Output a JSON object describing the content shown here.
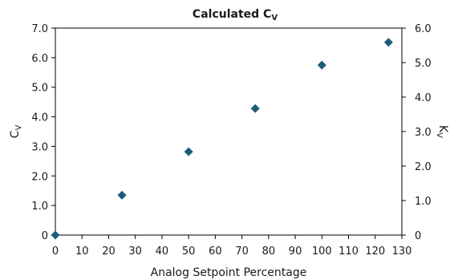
{
  "chart_data": {
    "type": "scatter",
    "title": "Calculated C",
    "title_sub": "V",
    "xlabel": "Analog Setpoint Percentage",
    "ylabel": "C",
    "ylabel_sub": "V",
    "y2label": "K",
    "y2label_sub": "V",
    "xlim": [
      0,
      130
    ],
    "ylim": [
      0,
      7.0
    ],
    "y2lim": [
      0,
      6.0
    ],
    "x_ticks": [
      "0",
      "10",
      "20",
      "30",
      "40",
      "50",
      "60",
      "70",
      "80",
      "90",
      "100",
      "110",
      "120",
      "130"
    ],
    "y_ticks": [
      "0",
      "1.0",
      "2.0",
      "3.0",
      "4.0",
      "5.0",
      "6.0",
      "7.0"
    ],
    "y2_ticks": [
      "0",
      "1.0",
      "2.0",
      "3.0",
      "4.0",
      "5.0",
      "6.0"
    ],
    "grid": false,
    "marker_color": "#1f5a7a",
    "series": [
      {
        "x": [
          0,
          25,
          50,
          75,
          100,
          125
        ],
        "y": [
          0.0,
          1.35,
          2.82,
          4.28,
          5.75,
          6.52
        ]
      }
    ]
  }
}
